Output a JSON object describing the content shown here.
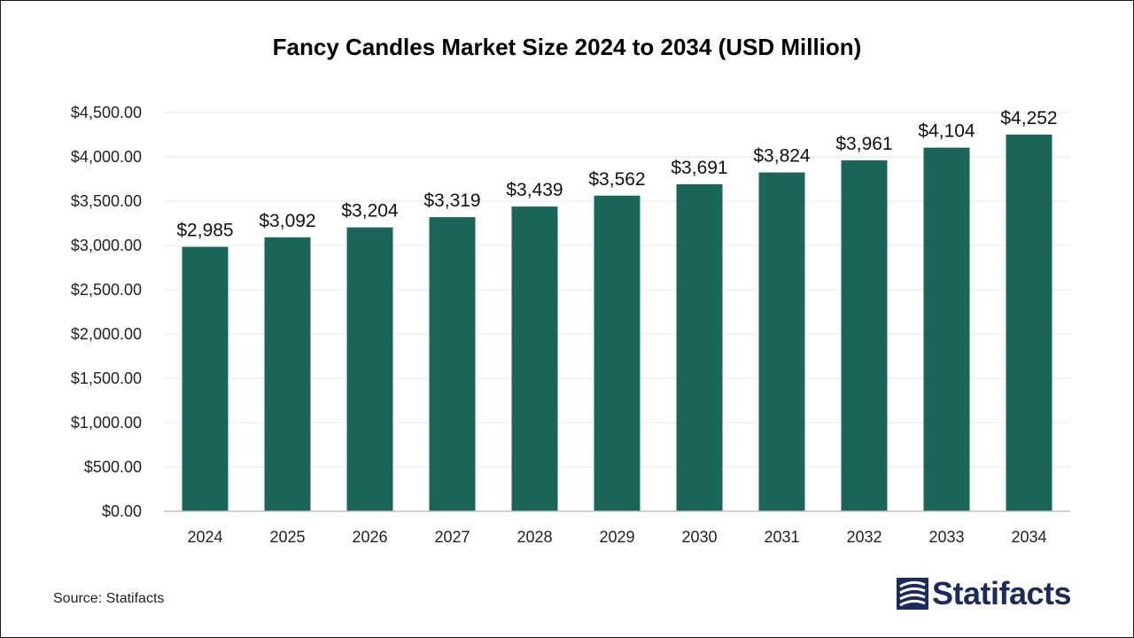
{
  "chart_data": {
    "type": "bar",
    "title": "Fancy Candles Market Size 2024 to 2034 (USD Million)",
    "categories": [
      "2024",
      "2025",
      "2026",
      "2027",
      "2028",
      "2029",
      "2030",
      "2031",
      "2032",
      "2033",
      "2034"
    ],
    "values": [
      2985,
      3092,
      3204,
      3319,
      3439,
      3562,
      3691,
      3824,
      3961,
      4104,
      4252
    ],
    "value_labels": [
      "$2,985",
      "$3,092",
      "$3,204",
      "$3,319",
      "$3,439",
      "$3,562",
      "$3,691",
      "$3,824",
      "$3,961",
      "$4,104",
      "$4,252"
    ],
    "y_ticks": [
      0,
      500,
      1000,
      1500,
      2000,
      2500,
      3000,
      3500,
      4000,
      4500
    ],
    "y_tick_labels": [
      "$0.00",
      "$500.00",
      "$1,000.00",
      "$1,500.00",
      "$2,000.00",
      "$2,500.00",
      "$3,000.00",
      "$3,500.00",
      "$4,000.00",
      "$4,500.00"
    ],
    "ylim": [
      0,
      4500
    ],
    "xlabel": "",
    "ylabel": "",
    "grid": true,
    "bar_color": "#1b6658"
  },
  "footer": {
    "source": "Source: Statifacts",
    "brand": "Statifacts",
    "brand_icon": "statifacts-logo-icon"
  }
}
